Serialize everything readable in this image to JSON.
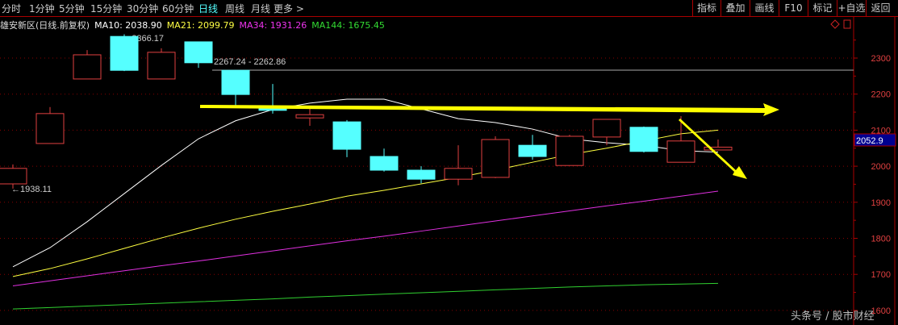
{
  "menu": {
    "tabs": [
      "分时",
      "1分钟",
      "5分钟",
      "15分钟",
      "30分钟",
      "60分钟",
      "日线",
      "周线",
      "月线",
      "更多 >"
    ],
    "active": "日线",
    "buttons": [
      "指标",
      "叠加",
      "画线",
      "F10",
      "标记",
      "+自选",
      "返回"
    ]
  },
  "legend": {
    "name": "雄安新区(日线.前复权)",
    "ma10": "MA10: 2038.90",
    "ma21": "MA21: 2099.79",
    "ma34": "MA34: 1931.26",
    "ma144": "MA144: 1675.45"
  },
  "colors": {
    "up": "#e04040",
    "down": "#55ffff",
    "ma10": "#ffffff",
    "ma21": "#ffff40",
    "ma34": "#e030e0",
    "ma144": "#30d030",
    "accent": "#5ff",
    "arrow": "#ffff00",
    "price_box": "#000090"
  },
  "annotations": {
    "high": "2366.17",
    "low": "1938.11",
    "range_line": "2267.24 - 2262.86",
    "last_price": "2052.9"
  },
  "watermark": "头条号 / 股市财经",
  "chart_data": {
    "type": "candlestick",
    "ylim": [
      1560,
      2412
    ],
    "yticks": [
      "2300",
      "2200",
      "2100",
      "2000",
      "1900",
      "1800",
      "1700",
      "1600"
    ],
    "grid": true,
    "candles": [
      {
        "o": 1951,
        "h": 2005,
        "l": 1938,
        "c": 1994
      },
      {
        "o": 2063,
        "h": 2164,
        "l": 2063,
        "c": 2146
      },
      {
        "o": 2242,
        "h": 2322,
        "l": 2242,
        "c": 2309
      },
      {
        "o": 2360,
        "h": 2366,
        "l": 2264,
        "c": 2266
      },
      {
        "o": 2242,
        "h": 2327,
        "l": 2242,
        "c": 2316
      },
      {
        "o": 2345,
        "h": 2345,
        "l": 2273,
        "c": 2287
      },
      {
        "o": 2266,
        "h": 2267,
        "l": 2166,
        "c": 2199
      },
      {
        "o": 2164,
        "h": 2228,
        "l": 2146,
        "c": 2155
      },
      {
        "o": 2134,
        "h": 2159,
        "l": 2112,
        "c": 2143
      },
      {
        "o": 2123,
        "h": 2128,
        "l": 2025,
        "c": 2047
      },
      {
        "o": 2027,
        "h": 2049,
        "l": 1985,
        "c": 1989
      },
      {
        "o": 1989,
        "h": 2000,
        "l": 1953,
        "c": 1964
      },
      {
        "o": 1964,
        "h": 2058,
        "l": 1947,
        "c": 1994
      },
      {
        "o": 1969,
        "h": 2083,
        "l": 1967,
        "c": 2074
      },
      {
        "o": 2058,
        "h": 2087,
        "l": 2018,
        "c": 2027
      },
      {
        "o": 2002,
        "h": 2087,
        "l": 2002,
        "c": 2083
      },
      {
        "o": 2081,
        "h": 2130,
        "l": 2058,
        "c": 2130
      },
      {
        "o": 2108,
        "h": 2110,
        "l": 2038,
        "c": 2041
      },
      {
        "o": 2011,
        "h": 2139,
        "l": 2011,
        "c": 2070
      },
      {
        "o": 2045,
        "h": 2074,
        "l": 2045,
        "c": 2052.9
      }
    ],
    "series": [
      {
        "name": "MA10",
        "values": [
          1721,
          1774,
          1846,
          1924,
          2002,
          2076,
          2126,
          2157,
          2175,
          2186,
          2186,
          2159,
          2132,
          2121,
          2103,
          2076,
          2065,
          2058,
          2043,
          2039
        ]
      },
      {
        "name": "MA21",
        "values": [
          1694,
          1716,
          1743,
          1772,
          1801,
          1828,
          1853,
          1875,
          1895,
          1917,
          1933,
          1951,
          1969,
          1989,
          2011,
          2032,
          2050,
          2070,
          2090,
          2100
        ]
      },
      {
        "name": "MA34",
        "values": [
          1668,
          1682,
          1696,
          1710,
          1724,
          1737,
          1751,
          1765,
          1779,
          1793,
          1806,
          1820,
          1834,
          1848,
          1862,
          1876,
          1890,
          1903,
          1917,
          1931
        ]
      },
      {
        "name": "MA144",
        "values": [
          1604,
          1608,
          1612,
          1616,
          1620,
          1624,
          1628,
          1632,
          1637,
          1641,
          1645,
          1649,
          1653,
          1657,
          1661,
          1665,
          1668,
          1671,
          1673,
          1675
        ]
      }
    ]
  }
}
